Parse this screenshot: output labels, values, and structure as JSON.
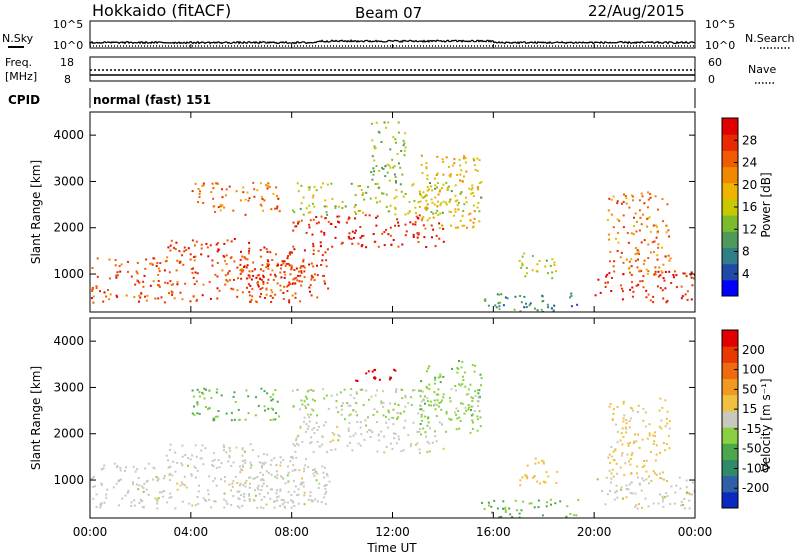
{
  "header": {
    "station": "Hokkaido (fitACF)",
    "beam": "Beam 07",
    "date": "22/Aug/2015"
  },
  "top_panels": {
    "nsky_label": "N.Sky",
    "nsky_ticks": [
      "10^5",
      "10^0"
    ],
    "nsky_right_ticks": [
      "10^5",
      "10^0"
    ],
    "nsearch_label": "N.Search",
    "freq_label_1": "Freq.",
    "freq_label_2": "[MHz]",
    "freq_ticks": [
      "18",
      "8"
    ],
    "nave_label": "Nave",
    "nave_ticks": [
      "60",
      "0"
    ],
    "cpid_label": "CPID",
    "cpid_value": "normal (fast) 151"
  },
  "axes": {
    "y_label": "Slant Range [km]",
    "y_ticks": [
      "1000",
      "2000",
      "3000",
      "4000"
    ],
    "x_ticks": [
      "00:00",
      "04:00",
      "08:00",
      "12:00",
      "16:00",
      "20:00",
      "00:00"
    ],
    "x_label": "Time UT"
  },
  "colorbars": {
    "power": {
      "label": "Power [dB]",
      "ticks": [
        "4",
        "8",
        "12",
        "16",
        "20",
        "24",
        "28"
      ],
      "colors": [
        "#0000ff",
        "#1f4aa8",
        "#2f7f86",
        "#4f9a5a",
        "#7cbc2c",
        "#c8c800",
        "#f0b400",
        "#f08800",
        "#f05a00",
        "#e82a00",
        "#e00000"
      ]
    },
    "velocity": {
      "label": "Velocity [m s⁻¹]",
      "ticks": [
        "200",
        "100",
        "50",
        "15",
        "-15",
        "-50",
        "-100",
        "-200"
      ],
      "colors": [
        "#0a2abf",
        "#2f5fa8",
        "#2f8a6a",
        "#4aa84a",
        "#8ad040",
        "#c8c8c0",
        "#f0c040",
        "#f09a20",
        "#f06a10",
        "#e83a00",
        "#e00000"
      ]
    }
  },
  "chart_data": [
    {
      "type": "heatmap",
      "title": "Power",
      "x": "Time UT (hours 0-24)",
      "ylim": [
        180,
        4500
      ],
      "xlim": [
        0,
        24
      ],
      "colorbar_label": "Power [dB]",
      "colorbar_range": [
        0,
        30
      ],
      "regions": [
        {
          "t0": 0.0,
          "t1": 8.5,
          "r0": 400,
          "r1": 1400,
          "power": 24
        },
        {
          "t0": 3.0,
          "t1": 6.5,
          "r0": 1300,
          "r1": 1800,
          "power": 26
        },
        {
          "t0": 6.0,
          "t1": 9.5,
          "r0": 500,
          "r1": 1600,
          "power": 26
        },
        {
          "t0": 8.0,
          "t1": 14.0,
          "r0": 1600,
          "r1": 2300,
          "power": 27
        },
        {
          "t0": 13.0,
          "t1": 15.5,
          "r0": 2000,
          "r1": 3600,
          "power": 18
        },
        {
          "t0": 8.0,
          "t1": 15.5,
          "r0": 2300,
          "r1": 3000,
          "power": 14
        },
        {
          "t0": 4.0,
          "t1": 7.5,
          "r0": 2300,
          "r1": 3000,
          "power": 22
        },
        {
          "t0": 20.0,
          "t1": 24.0,
          "r0": 400,
          "r1": 1100,
          "power": 27
        },
        {
          "t0": 20.5,
          "t1": 23.0,
          "r0": 1000,
          "r1": 2800,
          "power": 22
        },
        {
          "t0": 15.5,
          "t1": 19.5,
          "r0": 200,
          "r1": 600,
          "power": 8
        },
        {
          "t0": 17.0,
          "t1": 18.5,
          "r0": 900,
          "r1": 1500,
          "power": 14
        },
        {
          "t0": 11.0,
          "t1": 12.5,
          "r0": 3000,
          "r1": 4300,
          "power": 12
        }
      ]
    },
    {
      "type": "heatmap",
      "title": "Velocity",
      "x": "Time UT (hours 0-24)",
      "ylim": [
        180,
        4500
      ],
      "xlim": [
        0,
        24
      ],
      "colorbar_label": "Velocity [m s⁻¹]",
      "colorbar_range": [
        -200,
        200
      ],
      "regions": [
        {
          "t0": 0.0,
          "t1": 8.5,
          "r0": 400,
          "r1": 1400,
          "velocity": 0
        },
        {
          "t0": 3.0,
          "t1": 6.5,
          "r0": 1300,
          "r1": 1800,
          "velocity": 0
        },
        {
          "t0": 6.0,
          "t1": 9.5,
          "r0": 500,
          "r1": 1600,
          "velocity": 0
        },
        {
          "t0": 8.0,
          "t1": 14.0,
          "r0": 1600,
          "r1": 2300,
          "velocity": 0
        },
        {
          "t0": 13.0,
          "t1": 15.5,
          "r0": 2000,
          "r1": 3600,
          "velocity": -40
        },
        {
          "t0": 8.0,
          "t1": 15.5,
          "r0": 2300,
          "r1": 3000,
          "velocity": -20
        },
        {
          "t0": 4.0,
          "t1": 7.5,
          "r0": 2300,
          "r1": 3000,
          "velocity": -60
        },
        {
          "t0": 20.0,
          "t1": 24.0,
          "r0": 400,
          "r1": 1100,
          "velocity": 0
        },
        {
          "t0": 20.5,
          "t1": 23.0,
          "r0": 1000,
          "r1": 2800,
          "velocity": 30
        },
        {
          "t0": 15.5,
          "t1": 19.5,
          "r0": 200,
          "r1": 600,
          "velocity": -60
        },
        {
          "t0": 17.0,
          "t1": 18.5,
          "r0": 900,
          "r1": 1500,
          "velocity": 40
        },
        {
          "t0": 10.5,
          "t1": 12.5,
          "r0": 3150,
          "r1": 3450,
          "velocity": 200
        }
      ]
    }
  ]
}
